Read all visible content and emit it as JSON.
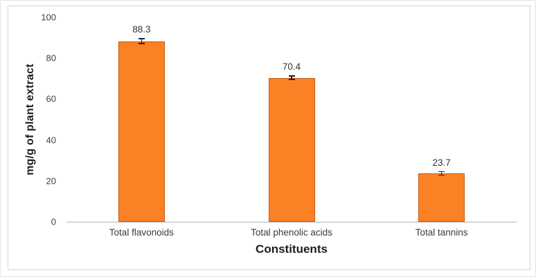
{
  "figure": {
    "background": "#ffffff",
    "outer_border_color": "#e4e4e4",
    "frame_border_color": "#d7d7d7"
  },
  "chart_data": {
    "type": "bar",
    "title": "",
    "categories": [
      "Total flavonoids",
      "Total phenolic acids",
      "Total tannins"
    ],
    "values": [
      88.3,
      70.4,
      23.7
    ],
    "data_labels": [
      "88.3",
      "70.4",
      "23.7"
    ],
    "error_bars": [
      1.4,
      1.1,
      1.1
    ],
    "xlabel": "Constituents",
    "ylabel": "mg/g of plant extract",
    "ylim": [
      0,
      100
    ],
    "yticks": [
      0,
      20,
      40,
      60,
      80,
      100
    ],
    "grid": false,
    "legend": false,
    "bar_color": "#fc8125",
    "bar_border_color": "#c2590f",
    "error_bar_color": "#222222",
    "axis_line_color": "#b0b0b0",
    "tick_label_color": "#404040",
    "data_label_color": "#333333",
    "category_label_color": "#3a3a3a",
    "axis_title_color": "#1c1c1c"
  }
}
